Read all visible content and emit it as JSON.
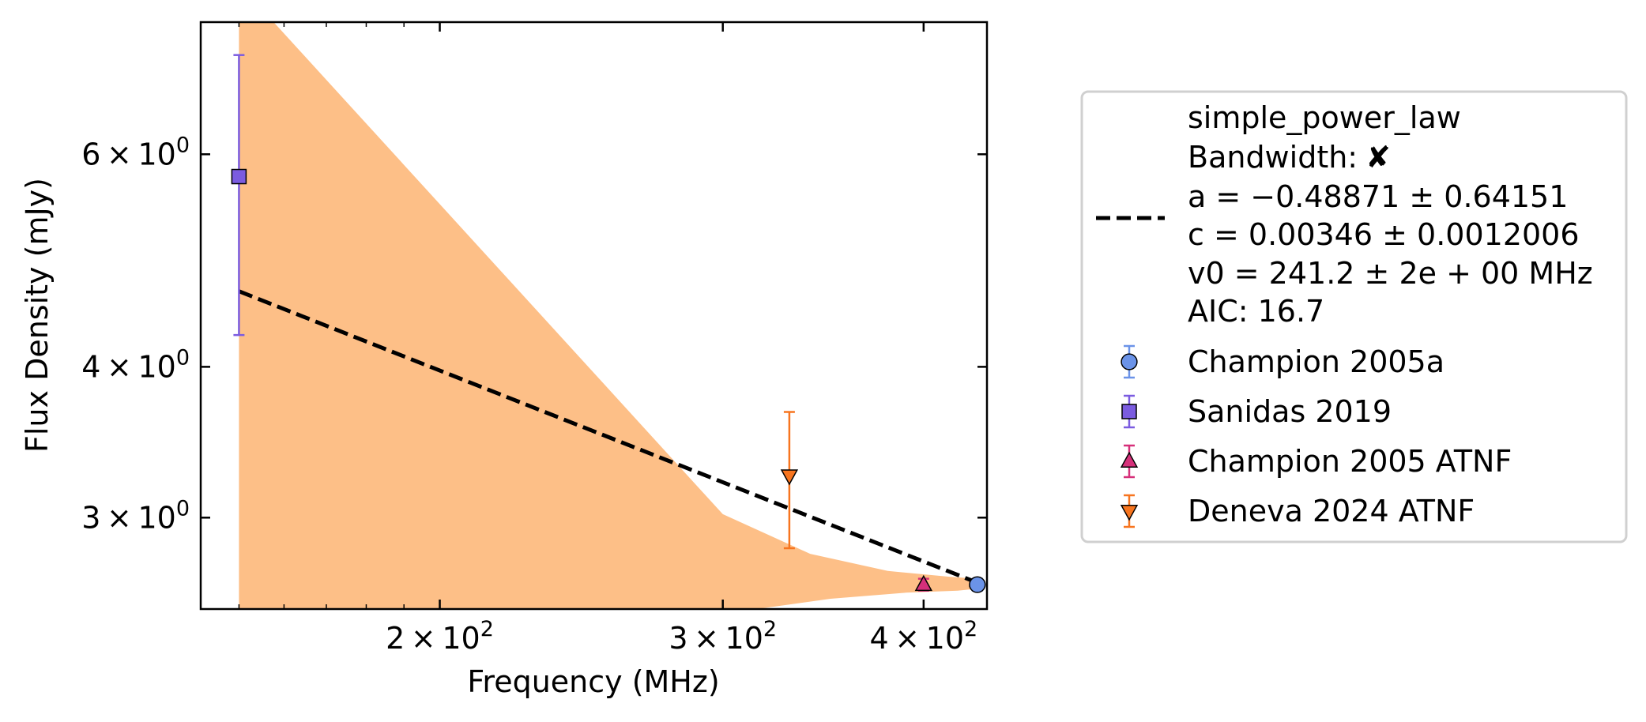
{
  "chart_data": {
    "type": "scatter",
    "xscale": "log",
    "yscale": "log",
    "xlabel": "Frequency (MHz)",
    "ylabel": "Flux Density (mJy)",
    "xlim": [
      142,
      438
    ],
    "ylim": [
      2.52,
      7.72
    ],
    "x_ticks": [
      {
        "value": 200,
        "mantissa": "2",
        "base": "10",
        "exp": "2"
      },
      {
        "value": 300,
        "mantissa": "3",
        "base": "10",
        "exp": "2"
      },
      {
        "value": 400,
        "mantissa": "4",
        "base": "10",
        "exp": "2"
      }
    ],
    "y_ticks": [
      {
        "value": 3,
        "mantissa": "3",
        "base": "10",
        "exp": "0"
      },
      {
        "value": 4,
        "mantissa": "4",
        "base": "10",
        "exp": "0"
      },
      {
        "value": 6,
        "mantissa": "6",
        "base": "10",
        "exp": "0"
      }
    ],
    "grid": false,
    "legend_position": "outside-right",
    "fit": {
      "model": "simple_power_law",
      "bandwidth_label": "Bandwidth:",
      "bandwidth_mark": "✘",
      "a_text": "a = −0.48871 ± 0.64151",
      "c_text": "c = 0.00346 ± 0.0012006",
      "v0_text": "v0 = 241.2 ± 2e + 00 MHz",
      "aic_text": "AIC: 16.7",
      "a": -0.48871,
      "c": 0.00346,
      "v0": 241.2,
      "line": {
        "x": [
          150,
          432
        ],
        "y": [
          4.62,
          2.65
        ]
      },
      "band_upper": [
        [
          150,
          8.3
        ],
        [
          300,
          3.02
        ],
        [
          340,
          2.8
        ],
        [
          380,
          2.71
        ],
        [
          415,
          2.68
        ],
        [
          432,
          2.67
        ]
      ],
      "band_lower": [
        [
          150,
          2.4
        ],
        [
          315,
          2.52
        ],
        [
          350,
          2.57
        ],
        [
          390,
          2.6
        ],
        [
          420,
          2.61
        ],
        [
          432,
          2.62
        ]
      ],
      "line_color": "#000000",
      "band_color": "#fdbf87"
    },
    "series": [
      {
        "name": "Champion 2005a",
        "marker": "circle",
        "color": "#6b93e8",
        "x": [
          432
        ],
        "y": [
          2.64
        ],
        "yerr": [
          0.03
        ]
      },
      {
        "name": "Sanidas 2019",
        "marker": "square",
        "color": "#7b5ce0",
        "x": [
          150
        ],
        "y": [
          5.75
        ],
        "yerr": [
          1.5
        ]
      },
      {
        "name": "Champion 2005 ATNF",
        "marker": "triangle-up",
        "color": "#d6307a",
        "x": [
          400
        ],
        "y": [
          2.64
        ],
        "yerr": [
          0.03
        ]
      },
      {
        "name": "Deneva 2024 ATNF",
        "marker": "triangle-down",
        "color": "#f7751f",
        "x": [
          330
        ],
        "y": [
          3.25
        ],
        "yerr": [
          0.42
        ]
      }
    ]
  }
}
